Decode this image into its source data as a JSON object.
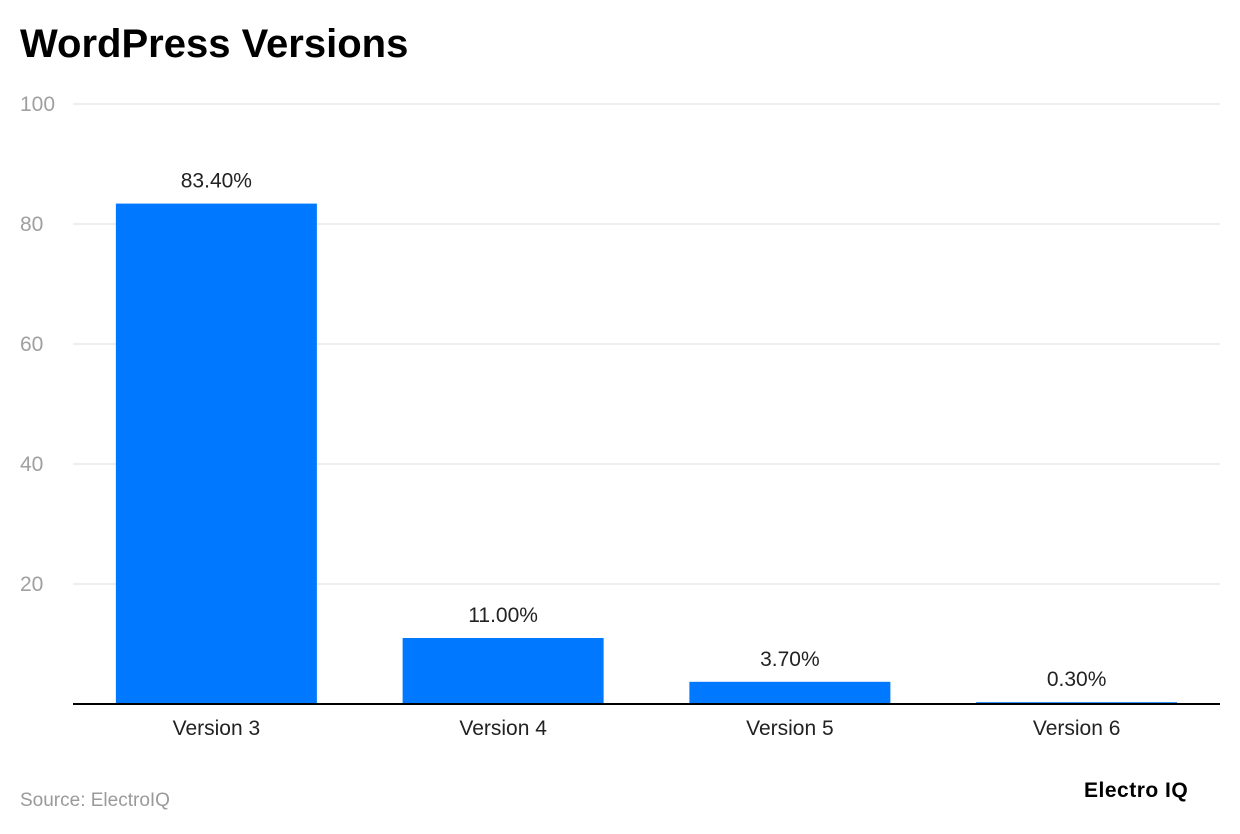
{
  "title": "WordPress Versions",
  "source": "Source: ElectroIQ",
  "logo_text": "Electro IQ",
  "colors": {
    "bar": "#0078FF",
    "grid": "#dddddd",
    "axis": "#000000",
    "tick_label": "#a0a0a0",
    "category_label": "#222222",
    "data_label": "#222222"
  },
  "chart_data": {
    "type": "bar",
    "categories": [
      "Version 3",
      "Version 4",
      "Version 5",
      "Version 6"
    ],
    "values": [
      83.4,
      11.0,
      3.7,
      0.3
    ],
    "data_labels": [
      "83.40%",
      "11.00%",
      "3.70%",
      "0.30%"
    ],
    "ylim": [
      0,
      100
    ],
    "yticks": [
      20,
      40,
      60,
      80,
      100
    ],
    "ytick_labels": [
      "20",
      "40",
      "60",
      "80",
      "100"
    ],
    "grid": true,
    "legend": "none"
  }
}
